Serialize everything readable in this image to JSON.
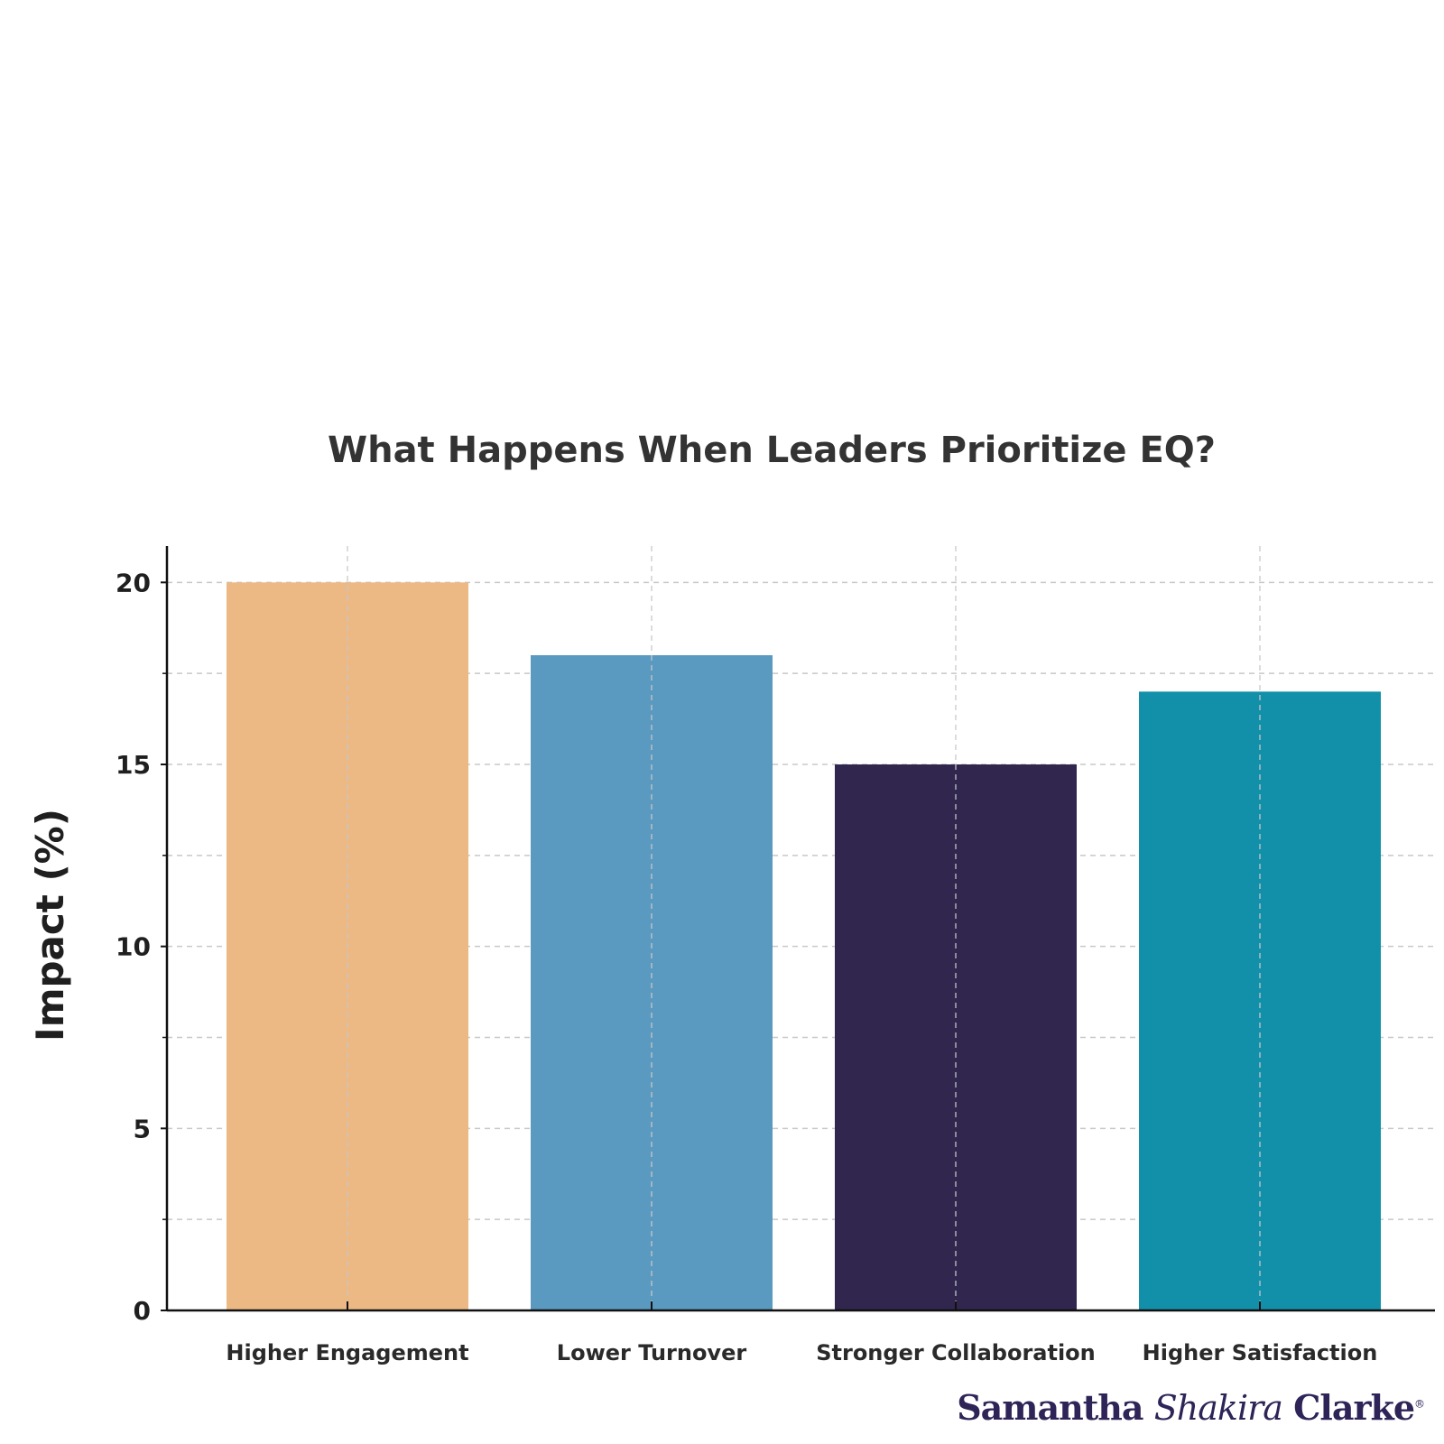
{
  "chart_data": {
    "type": "bar",
    "title": "What Happens When Leaders Prioritize EQ?",
    "xlabel": "",
    "ylabel": "Impact (%)",
    "categories": [
      "Higher Engagement",
      "Lower Turnover",
      "Stronger Collaboration",
      "Higher Satisfaction"
    ],
    "values": [
      20,
      18,
      15,
      17
    ],
    "colors": [
      "#ecb884",
      "#5a99c0",
      "#30264e",
      "#1290a9"
    ],
    "ylim": [
      0,
      21
    ],
    "yticks": [
      0,
      5,
      10,
      15,
      20
    ],
    "minor_gridlines": [
      2.5,
      7.5,
      12.5,
      17.5
    ],
    "grid": true,
    "grid_style": "dashed"
  },
  "branding": {
    "first": "Samantha",
    "middle": "Shakira",
    "last": "Clarke",
    "mark": "®"
  }
}
